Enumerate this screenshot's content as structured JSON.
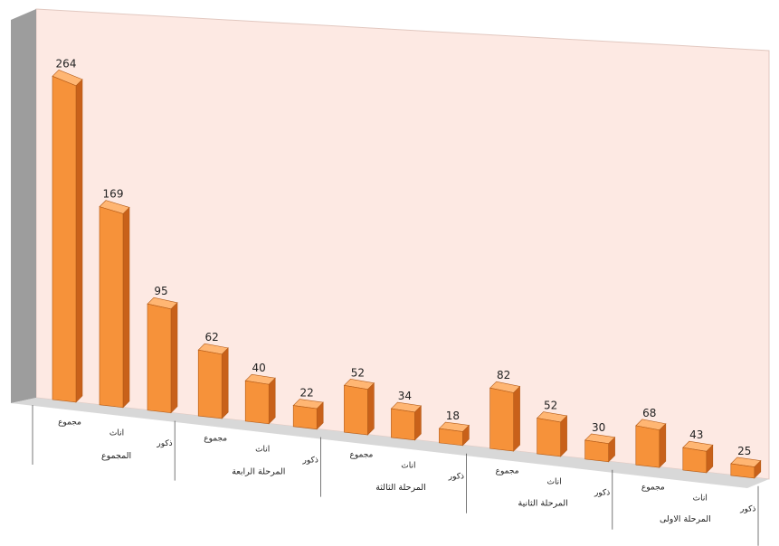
{
  "chart_data": {
    "type": "bar",
    "style": "3d-perspective",
    "title": "",
    "xlabel": "",
    "ylabel": "",
    "ylim": [
      0,
      280
    ],
    "grid": false,
    "legend": "none",
    "colors": {
      "bar_front": "#f6923a",
      "bar_side": "#c8611a",
      "bar_top": "#ffb673",
      "back_wall": "#fde9e3",
      "side_wall": "#9d9d9d",
      "floor": "#d8d8d8",
      "bar_outline": "#b35a17"
    },
    "groups": [
      {
        "label": "المجموع",
        "bars": [
          {
            "label": "مجموع",
            "value": 264
          },
          {
            "label": "اناث",
            "value": 169
          },
          {
            "label": "ذكور",
            "value": 95
          }
        ]
      },
      {
        "label": "المرحلة الرابعة",
        "bars": [
          {
            "label": "مجموع",
            "value": 62
          },
          {
            "label": "اناث",
            "value": 40
          },
          {
            "label": "ذكور",
            "value": 22
          }
        ]
      },
      {
        "label": "المرحلة الثالثة",
        "bars": [
          {
            "label": "مجموع",
            "value": 52
          },
          {
            "label": "اناث",
            "value": 34
          },
          {
            "label": "ذكور",
            "value": 18
          }
        ]
      },
      {
        "label": "المرحلة الثانية",
        "bars": [
          {
            "label": "مجموع",
            "value": 82
          },
          {
            "label": "اناث",
            "value": 52
          },
          {
            "label": "ذكور",
            "value": 30
          }
        ]
      },
      {
        "label": "المرحلة الاولى",
        "bars": [
          {
            "label": "مجموع",
            "value": 68
          },
          {
            "label": "اناث",
            "value": 43
          },
          {
            "label": "ذكور",
            "value": 25
          }
        ]
      }
    ]
  }
}
